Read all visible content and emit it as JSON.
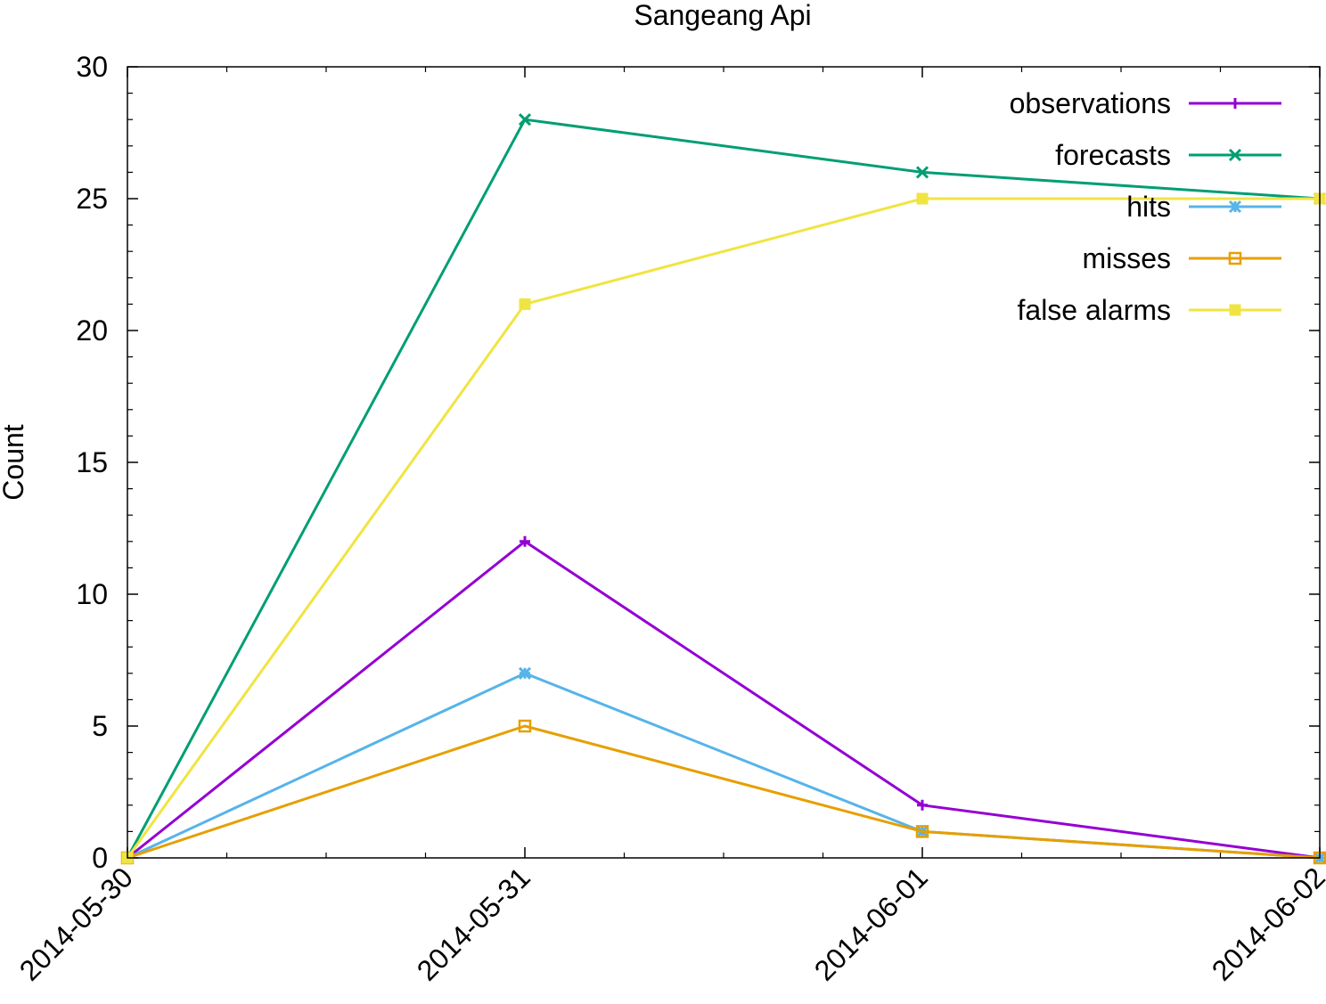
{
  "chart_data": {
    "type": "line",
    "title": "Sangeang Api",
    "xlabel": "",
    "ylabel": "Count",
    "x": [
      "2014-05-30",
      "2014-05-31",
      "2014-06-01",
      "2014-06-02"
    ],
    "xlim": [
      "2014-05-30",
      "2014-06-02"
    ],
    "ylim": [
      0,
      30
    ],
    "yticks": [
      0,
      5,
      10,
      15,
      20,
      25,
      30
    ],
    "grid": false,
    "legend_position": "top-right",
    "series": [
      {
        "name": "observations",
        "values": [
          0,
          12,
          2,
          0
        ],
        "color": "#9400d3",
        "marker": "plus"
      },
      {
        "name": "forecasts",
        "values": [
          0,
          28,
          26,
          25
        ],
        "color": "#009e73",
        "marker": "cross"
      },
      {
        "name": "hits",
        "values": [
          0,
          7,
          1,
          0
        ],
        "color": "#56b4e9",
        "marker": "asterisk"
      },
      {
        "name": "misses",
        "values": [
          0,
          5,
          1,
          0
        ],
        "color": "#e69f00",
        "marker": "open-square"
      },
      {
        "name": "false alarms",
        "values": [
          0,
          21,
          25,
          25
        ],
        "color": "#f0e442",
        "marker": "filled-square"
      }
    ]
  }
}
